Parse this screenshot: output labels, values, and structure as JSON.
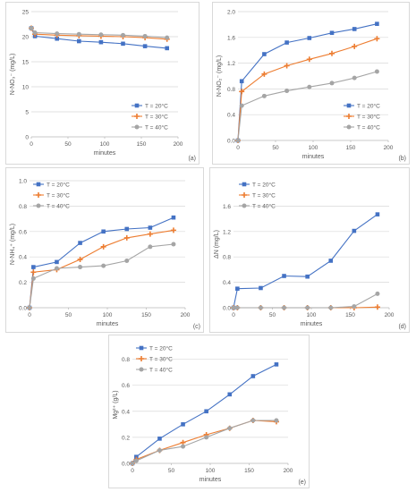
{
  "colors": {
    "t20": "#4472c4",
    "t30": "#ed7d31",
    "t40": "#a5a5a5",
    "grid": "#d9d9d9",
    "axis": "#bfbfbf",
    "text": "#595959"
  },
  "chart_data": [
    {
      "type": "line",
      "panel_label": "(a)",
      "xlabel": "minutes",
      "ylabel": "N-NO₃⁻ (mg/L)",
      "xlim": [
        0,
        200
      ],
      "xticks": [
        0,
        50,
        100,
        150,
        200
      ],
      "ylim": [
        0,
        25
      ],
      "yticks": [
        0,
        5,
        10,
        15,
        20,
        25
      ],
      "grid": true,
      "legend_position": "bottom-right",
      "series": [
        {
          "name": "T = 20°C",
          "color": "t20",
          "marker": "square",
          "x": [
            0,
            5,
            35,
            65,
            95,
            125,
            155,
            185
          ],
          "y": [
            21.7,
            20.1,
            19.6,
            19.1,
            18.9,
            18.6,
            18.1,
            17.7
          ]
        },
        {
          "name": "T = 30°C",
          "color": "t30",
          "marker": "plus",
          "x": [
            0,
            5,
            35,
            65,
            95,
            125,
            155,
            185
          ],
          "y": [
            21.7,
            20.5,
            20.3,
            20.2,
            20.1,
            20.0,
            19.8,
            19.5
          ]
        },
        {
          "name": "T = 40°C",
          "color": "t40",
          "marker": "circle",
          "x": [
            0,
            5,
            35,
            65,
            95,
            125,
            155,
            185
          ],
          "y": [
            21.7,
            20.8,
            20.6,
            20.5,
            20.4,
            20.3,
            20.1,
            19.8
          ]
        }
      ]
    },
    {
      "type": "line",
      "panel_label": "(b)",
      "xlabel": "minutes",
      "ylabel": "N-NO₂⁻ (mg/L)",
      "xlim": [
        0,
        200
      ],
      "xticks": [
        0,
        50,
        100,
        150,
        200
      ],
      "ylim": [
        0,
        2.0
      ],
      "yticks": [
        0,
        0.4,
        0.8,
        1.2,
        1.6,
        2.0
      ],
      "grid": true,
      "legend_position": "bottom-right",
      "series": [
        {
          "name": "T = 20°C",
          "color": "t20",
          "marker": "square",
          "x": [
            0,
            5,
            35,
            65,
            95,
            125,
            155,
            185
          ],
          "y": [
            0,
            0.92,
            1.34,
            1.52,
            1.59,
            1.67,
            1.73,
            1.81
          ]
        },
        {
          "name": "T = 30°C",
          "color": "t30",
          "marker": "plus",
          "x": [
            0,
            5,
            35,
            65,
            95,
            125,
            155,
            185
          ],
          "y": [
            0,
            0.76,
            1.03,
            1.16,
            1.26,
            1.35,
            1.46,
            1.58
          ]
        },
        {
          "name": "T = 40°C",
          "color": "t40",
          "marker": "circle",
          "x": [
            0,
            5,
            35,
            65,
            95,
            125,
            155,
            185
          ],
          "y": [
            0,
            0.54,
            0.69,
            0.77,
            0.83,
            0.89,
            0.97,
            1.07
          ]
        }
      ]
    },
    {
      "type": "line",
      "panel_label": "(c)",
      "xlabel": "minutes",
      "ylabel": "N-NH₄⁺ (mg/L)",
      "xlim": [
        0,
        200
      ],
      "xticks": [
        0,
        50,
        100,
        150,
        200
      ],
      "ylim": [
        0,
        1.0
      ],
      "yticks": [
        0,
        0.2,
        0.4,
        0.6,
        0.8,
        1.0
      ],
      "grid": true,
      "legend_position": "top-left",
      "series": [
        {
          "name": "T = 20°C",
          "color": "t20",
          "marker": "square",
          "x": [
            0,
            5,
            35,
            65,
            95,
            125,
            155,
            185
          ],
          "y": [
            0,
            0.32,
            0.36,
            0.51,
            0.6,
            0.62,
            0.63,
            0.71
          ]
        },
        {
          "name": "T = 30°C",
          "color": "t30",
          "marker": "plus",
          "x": [
            0,
            5,
            35,
            65,
            95,
            125,
            155,
            185
          ],
          "y": [
            0,
            0.28,
            0.3,
            0.38,
            0.48,
            0.55,
            0.58,
            0.61
          ]
        },
        {
          "name": "T = 40°C",
          "color": "t40",
          "marker": "circle",
          "x": [
            0,
            5,
            35,
            65,
            95,
            125,
            155,
            185
          ],
          "y": [
            0,
            0.23,
            0.31,
            0.32,
            0.33,
            0.37,
            0.48,
            0.5
          ]
        }
      ]
    },
    {
      "type": "line",
      "panel_label": "(d)",
      "xlabel": "minutes",
      "ylabel": "ΔN (mg/L)",
      "xlim": [
        0,
        200
      ],
      "xticks": [
        0,
        50,
        100,
        150,
        200
      ],
      "ylim": [
        0,
        2.0
      ],
      "yticks": [
        0,
        0.4,
        0.8,
        1.2,
        1.6
      ],
      "grid": true,
      "legend_position": "top-left",
      "series": [
        {
          "name": "T = 20°C",
          "color": "t20",
          "marker": "square",
          "x": [
            0,
            5,
            35,
            65,
            95,
            125,
            155,
            185
          ],
          "y": [
            0,
            0.3,
            0.31,
            0.5,
            0.49,
            0.74,
            1.21,
            1.47
          ]
        },
        {
          "name": "T = 30°C",
          "color": "t30",
          "marker": "plus",
          "x": [
            0,
            5,
            35,
            65,
            95,
            125,
            155,
            185
          ],
          "y": [
            0,
            0,
            0,
            0,
            0,
            0,
            0,
            0.01
          ]
        },
        {
          "name": "T = 40°C",
          "color": "t40",
          "marker": "circle",
          "x": [
            0,
            5,
            35,
            65,
            95,
            125,
            155,
            185
          ],
          "y": [
            0,
            0,
            0,
            0,
            0,
            0,
            0.02,
            0.22
          ]
        }
      ]
    },
    {
      "type": "line",
      "panel_label": "(e)",
      "xlabel": "minutes",
      "ylabel": "Mg²⁺ (g/L)",
      "xlim": [
        0,
        200
      ],
      "xticks": [
        0,
        50,
        100,
        150,
        200
      ],
      "ylim": [
        0,
        0.9
      ],
      "yticks": [
        0,
        0.2,
        0.4,
        0.6,
        0.8
      ],
      "grid": true,
      "legend_position": "top-left",
      "series": [
        {
          "name": "T = 20°C",
          "color": "t20",
          "marker": "square",
          "x": [
            0,
            5,
            35,
            65,
            95,
            125,
            155,
            185
          ],
          "y": [
            0,
            0.05,
            0.19,
            0.3,
            0.4,
            0.53,
            0.67,
            0.76
          ]
        },
        {
          "name": "T = 30°C",
          "color": "t30",
          "marker": "plus",
          "x": [
            0,
            5,
            35,
            65,
            95,
            125,
            155,
            185
          ],
          "y": [
            0,
            0.03,
            0.1,
            0.16,
            0.22,
            0.27,
            0.33,
            0.32
          ]
        },
        {
          "name": "T = 40°C",
          "color": "t40",
          "marker": "circle",
          "x": [
            0,
            5,
            35,
            65,
            95,
            125,
            155,
            185
          ],
          "y": [
            0,
            0.02,
            0.1,
            0.13,
            0.2,
            0.27,
            0.33,
            0.33
          ]
        }
      ]
    }
  ]
}
